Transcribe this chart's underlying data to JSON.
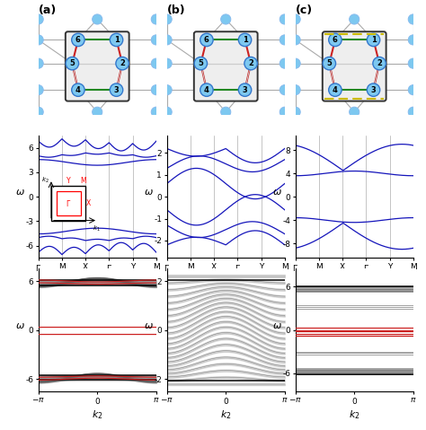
{
  "fig_width": 4.74,
  "fig_height": 4.79,
  "band_blue": "#1515BB",
  "red_color": "#CC2222",
  "node_color": "#7DC8F0",
  "node_edge_dark": "#3377CC",
  "node_edge_light": "#88BBEE",
  "gray_band_color": "#888888",
  "black_color": "#000000",
  "green_bond": "#228822",
  "red_bond": "#CC2222",
  "outer_bond": "#AAAAAA",
  "inner_bond_light": "#CCCCCC",
  "box_color": "#333333",
  "box_fill": "#EEEEEE",
  "yellow_dash": "#CCBB00",
  "kpoint_labels": [
    "Γ",
    "M",
    "X",
    "Γ",
    "Y",
    "M"
  ],
  "panel_labels": [
    "(a)",
    "(b)",
    "(c)"
  ]
}
